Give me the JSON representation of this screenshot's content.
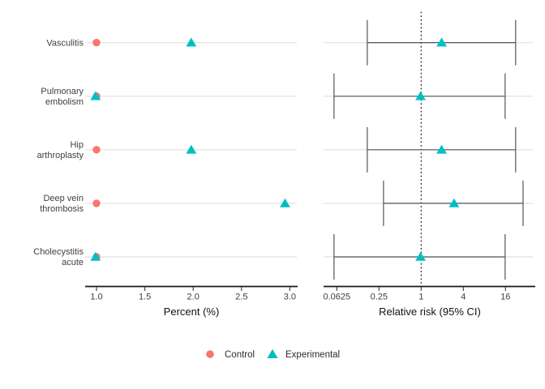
{
  "figure": {
    "background": "#ffffff",
    "grid_color": "#e5e5e5",
    "errorbar_color": "#555555",
    "axis_line_color": "#191919",
    "reference_line_color": "#141414"
  },
  "legend": {
    "position": "bottom-center",
    "items": [
      {
        "label": "Control",
        "marker": "circle",
        "color": "#F8766D"
      },
      {
        "label": "Experimental",
        "marker": "triangle",
        "color": "#00BFC4"
      }
    ]
  },
  "chart_data": {
    "type": "scatter",
    "subtype": "two-panel-forest-dot-plot",
    "title": "",
    "categories": [
      "Vasculitis",
      "Pulmonary embolism",
      "Hip arthroplasty",
      "Deep vein thrombosis",
      "Cholecystitis acute"
    ],
    "category_label_lines": [
      [
        "Vasculitis"
      ],
      [
        "Pulmonary",
        "embolism"
      ],
      [
        "Hip",
        "arthroplasty"
      ],
      [
        "Deep vein",
        "thrombosis"
      ],
      [
        "Cholecystitis",
        "acute"
      ]
    ],
    "panels": [
      {
        "xlabel": "Percent (%)",
        "scale": "linear",
        "ticks": [
          1.0,
          1.5,
          2.0,
          2.5,
          3.0
        ],
        "tick_labels": [
          "1.0",
          "1.5",
          "2.0",
          "2.5",
          "3.0"
        ],
        "xlim": [
          0.9,
          3.1
        ],
        "grid": "horizontal-only"
      },
      {
        "xlabel": "Relative risk (95% CI)",
        "scale": "log4",
        "ticks": [
          0.0625,
          0.25,
          1,
          4,
          16
        ],
        "tick_labels": [
          "0.0625",
          "0.25",
          "1",
          "4",
          "16"
        ],
        "xlim": [
          0.04,
          45
        ],
        "reference_line": 1,
        "grid": "horizontal-only"
      }
    ],
    "series": [
      {
        "name": "Control",
        "marker": "circle",
        "color": "#F8766D",
        "percent": [
          1.0,
          1.0,
          1.0,
          1.0,
          1.0
        ]
      },
      {
        "name": "Experimental",
        "marker": "triangle",
        "color": "#00BFC4",
        "percent": [
          1.98,
          0.99,
          1.98,
          2.95,
          0.99
        ]
      }
    ],
    "relative_risk": [
      {
        "category": "Vasculitis",
        "rr": 1.96,
        "ci_low": 0.17,
        "ci_high": 22.3
      },
      {
        "category": "Pulmonary embolism",
        "rr": 0.98,
        "ci_low": 0.057,
        "ci_high": 15.8
      },
      {
        "category": "Hip arthroplasty",
        "rr": 1.96,
        "ci_low": 0.17,
        "ci_high": 22.3
      },
      {
        "category": "Deep vein thrombosis",
        "rr": 2.95,
        "ci_low": 0.29,
        "ci_high": 28.5
      },
      {
        "category": "Cholecystitis acute",
        "rr": 0.98,
        "ci_low": 0.057,
        "ci_high": 15.8
      }
    ]
  }
}
